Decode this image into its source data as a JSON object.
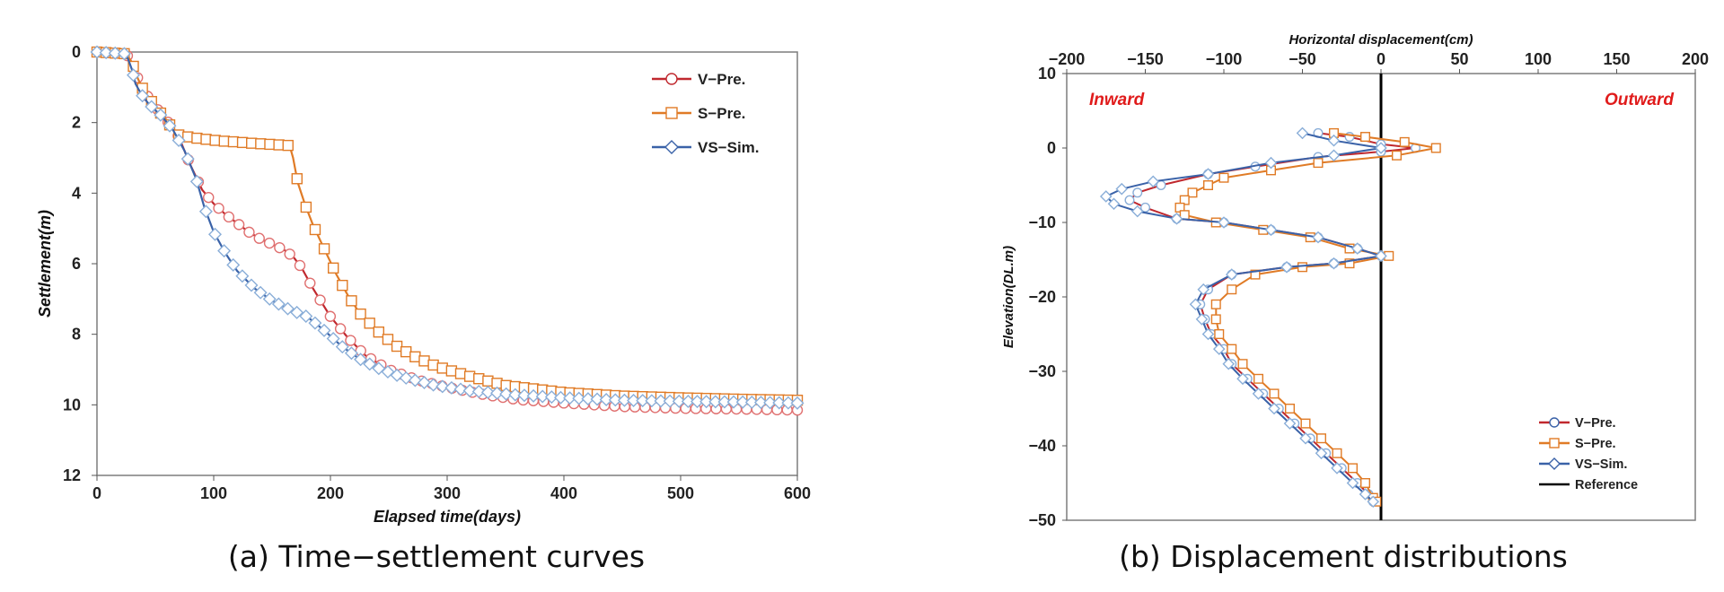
{
  "colors": {
    "v_pre": "#c0282e",
    "v_pre_marker": "#e07070",
    "s_pre": "#e07b26",
    "vs_sim": "#3a62a8",
    "vs_sim_marker": "#8aaed8",
    "reference": "#000000",
    "side_label": "#e01b1b"
  },
  "chart_data": [
    {
      "id": "a",
      "type": "scatter",
      "caption": "(a) Time−settlement curves",
      "xlabel": "Elapsed time(days)",
      "ylabel": "Settlement(m)",
      "xlim": [
        0,
        600
      ],
      "ylim": [
        0,
        12
      ],
      "y_inverted": true,
      "xticks": [
        0,
        100,
        200,
        300,
        400,
        500,
        600
      ],
      "yticks": [
        0,
        2,
        4,
        6,
        8,
        10,
        12
      ],
      "legend": [
        "V−Pre.",
        "S−Pre.",
        "VS−Sim."
      ],
      "legend_position": "top-right",
      "series": [
        {
          "name": "V−Pre.",
          "points": [
            [
              0,
              0
            ],
            [
              25,
              0.05
            ],
            [
              30,
              0.3
            ],
            [
              35,
              0.75
            ],
            [
              40,
              1.1
            ],
            [
              50,
              1.55
            ],
            [
              60,
              1.95
            ],
            [
              70,
              2.4
            ],
            [
              80,
              3.2
            ],
            [
              90,
              3.9
            ],
            [
              100,
              4.3
            ],
            [
              110,
              4.6
            ],
            [
              120,
              4.85
            ],
            [
              130,
              5.1
            ],
            [
              140,
              5.3
            ],
            [
              150,
              5.45
            ],
            [
              160,
              5.6
            ],
            [
              168,
              5.8
            ],
            [
              175,
              6.1
            ],
            [
              185,
              6.7
            ],
            [
              200,
              7.5
            ],
            [
              215,
              8.1
            ],
            [
              230,
              8.6
            ],
            [
              250,
              9.0
            ],
            [
              275,
              9.3
            ],
            [
              300,
              9.5
            ],
            [
              330,
              9.7
            ],
            [
              360,
              9.85
            ],
            [
              400,
              9.95
            ],
            [
              450,
              10.05
            ],
            [
              500,
              10.1
            ],
            [
              550,
              10.12
            ],
            [
              600,
              10.15
            ]
          ]
        },
        {
          "name": "S−Pre.",
          "points": [
            [
              0,
              0
            ],
            [
              25,
              0.05
            ],
            [
              30,
              0.3
            ],
            [
              35,
              0.75
            ],
            [
              40,
              1.1
            ],
            [
              50,
              1.55
            ],
            [
              60,
              1.95
            ],
            [
              65,
              2.2
            ],
            [
              70,
              2.35
            ],
            [
              80,
              2.42
            ],
            [
              90,
              2.46
            ],
            [
              100,
              2.5
            ],
            [
              110,
              2.53
            ],
            [
              120,
              2.55
            ],
            [
              130,
              2.58
            ],
            [
              140,
              2.6
            ],
            [
              150,
              2.62
            ],
            [
              160,
              2.64
            ],
            [
              165,
              2.65
            ],
            [
              168,
              3.0
            ],
            [
              172,
              3.7
            ],
            [
              178,
              4.3
            ],
            [
              185,
              4.9
            ],
            [
              195,
              5.6
            ],
            [
              205,
              6.3
            ],
            [
              215,
              6.9
            ],
            [
              225,
              7.4
            ],
            [
              240,
              7.9
            ],
            [
              255,
              8.3
            ],
            [
              270,
              8.6
            ],
            [
              290,
              8.9
            ],
            [
              320,
              9.2
            ],
            [
              350,
              9.45
            ],
            [
              400,
              9.65
            ],
            [
              450,
              9.75
            ],
            [
              500,
              9.8
            ],
            [
              550,
              9.84
            ],
            [
              600,
              9.87
            ]
          ]
        },
        {
          "name": "VS−Sim.",
          "points": [
            [
              0,
              0
            ],
            [
              25,
              0.05
            ],
            [
              30,
              0.5
            ],
            [
              33,
              0.9
            ],
            [
              38,
              1.2
            ],
            [
              45,
              1.5
            ],
            [
              55,
              1.8
            ],
            [
              65,
              2.2
            ],
            [
              75,
              2.8
            ],
            [
              85,
              3.6
            ],
            [
              92,
              4.4
            ],
            [
              100,
              5.1
            ],
            [
              110,
              5.7
            ],
            [
              120,
              6.2
            ],
            [
              135,
              6.7
            ],
            [
              150,
              7.05
            ],
            [
              165,
              7.3
            ],
            [
              180,
              7.5
            ],
            [
              195,
              7.9
            ],
            [
              210,
              8.35
            ],
            [
              225,
              8.7
            ],
            [
              240,
              8.95
            ],
            [
              260,
              9.2
            ],
            [
              290,
              9.45
            ],
            [
              320,
              9.6
            ],
            [
              360,
              9.72
            ],
            [
              400,
              9.8
            ],
            [
              450,
              9.87
            ],
            [
              500,
              9.9
            ],
            [
              550,
              9.92
            ],
            [
              600,
              9.95
            ]
          ]
        }
      ]
    },
    {
      "id": "b",
      "type": "line",
      "caption": "(b) Displacement distributions",
      "xlabel": "Horizontal displacement(cm)",
      "ylabel": "Elevation(DL.m)",
      "xlim": [
        -200,
        200
      ],
      "ylim": [
        -50,
        10
      ],
      "xticks": [
        -200,
        -150,
        -100,
        -50,
        0,
        50,
        100,
        150,
        200
      ],
      "yticks": [
        10,
        0,
        -10,
        -20,
        -30,
        -40,
        -50
      ],
      "x_axis_position": "top",
      "annotations": [
        "Inward",
        "Outward"
      ],
      "legend": [
        "V−Pre.",
        "S−Pre.",
        "VS−Sim.",
        "Reference"
      ],
      "legend_position": "bottom-right",
      "reference_x": 0,
      "series": [
        {
          "name": "V−Pre.",
          "points": [
            [
              -40,
              2
            ],
            [
              -20,
              1.5
            ],
            [
              0,
              0.5
            ],
            [
              22,
              0
            ],
            [
              0,
              -0.5
            ],
            [
              -40,
              -1.2
            ],
            [
              -80,
              -2.5
            ],
            [
              -110,
              -3.5
            ],
            [
              -140,
              -5
            ],
            [
              -155,
              -6
            ],
            [
              -160,
              -7
            ],
            [
              -150,
              -8
            ],
            [
              -130,
              -9.5
            ],
            [
              -100,
              -10
            ],
            [
              -70,
              -11
            ],
            [
              -40,
              -12
            ],
            [
              -15,
              -13.5
            ],
            [
              0,
              -14.5
            ],
            [
              -30,
              -15.5
            ],
            [
              -60,
              -16
            ],
            [
              -95,
              -17
            ],
            [
              -110,
              -19
            ],
            [
              -115,
              -21
            ],
            [
              -112,
              -23
            ],
            [
              -108,
              -25
            ],
            [
              -100,
              -27
            ],
            [
              -95,
              -29
            ],
            [
              -85,
              -31
            ],
            [
              -75,
              -33
            ],
            [
              -65,
              -35
            ],
            [
              -55,
              -37
            ],
            [
              -45,
              -39
            ],
            [
              -35,
              -41
            ],
            [
              -25,
              -43
            ],
            [
              -15,
              -45
            ],
            [
              -8,
              -46.5
            ],
            [
              -5,
              -47.5
            ]
          ]
        },
        {
          "name": "S−Pre.",
          "points": [
            [
              -30,
              2
            ],
            [
              -10,
              1.5
            ],
            [
              15,
              0.8
            ],
            [
              35,
              0
            ],
            [
              10,
              -1
            ],
            [
              -40,
              -2
            ],
            [
              -70,
              -3
            ],
            [
              -100,
              -4
            ],
            [
              -110,
              -5
            ],
            [
              -120,
              -6
            ],
            [
              -125,
              -7
            ],
            [
              -128,
              -8
            ],
            [
              -125,
              -9
            ],
            [
              -105,
              -10
            ],
            [
              -75,
              -11
            ],
            [
              -45,
              -12
            ],
            [
              -20,
              -13.5
            ],
            [
              5,
              -14.5
            ],
            [
              -20,
              -15.5
            ],
            [
              -50,
              -16
            ],
            [
              -80,
              -17
            ],
            [
              -95,
              -19
            ],
            [
              -105,
              -21
            ],
            [
              -105,
              -23
            ],
            [
              -103,
              -25
            ],
            [
              -95,
              -27
            ],
            [
              -88,
              -29
            ],
            [
              -78,
              -31
            ],
            [
              -68,
              -33
            ],
            [
              -58,
              -35
            ],
            [
              -48,
              -37
            ],
            [
              -38,
              -39
            ],
            [
              -28,
              -41
            ],
            [
              -18,
              -43
            ],
            [
              -10,
              -45
            ],
            [
              -5,
              -47
            ],
            [
              -3,
              -47.5
            ]
          ]
        },
        {
          "name": "VS−Sim.",
          "points": [
            [
              -50,
              2
            ],
            [
              -30,
              1
            ],
            [
              0,
              0
            ],
            [
              -30,
              -1
            ],
            [
              -70,
              -2
            ],
            [
              -110,
              -3.5
            ],
            [
              -145,
              -4.5
            ],
            [
              -165,
              -5.5
            ],
            [
              -175,
              -6.5
            ],
            [
              -170,
              -7.5
            ],
            [
              -155,
              -8.5
            ],
            [
              -130,
              -9.5
            ],
            [
              -100,
              -10
            ],
            [
              -70,
              -11
            ],
            [
              -40,
              -12
            ],
            [
              -15,
              -13.5
            ],
            [
              0,
              -14.5
            ],
            [
              -30,
              -15.5
            ],
            [
              -60,
              -16
            ],
            [
              -95,
              -17
            ],
            [
              -113,
              -19
            ],
            [
              -118,
              -21
            ],
            [
              -114,
              -23
            ],
            [
              -110,
              -25
            ],
            [
              -103,
              -27
            ],
            [
              -97,
              -29
            ],
            [
              -88,
              -31
            ],
            [
              -78,
              -33
            ],
            [
              -68,
              -35
            ],
            [
              -58,
              -37
            ],
            [
              -48,
              -39
            ],
            [
              -38,
              -41
            ],
            [
              -28,
              -43
            ],
            [
              -18,
              -45
            ],
            [
              -10,
              -46.5
            ],
            [
              -5,
              -47.5
            ]
          ]
        }
      ]
    }
  ]
}
